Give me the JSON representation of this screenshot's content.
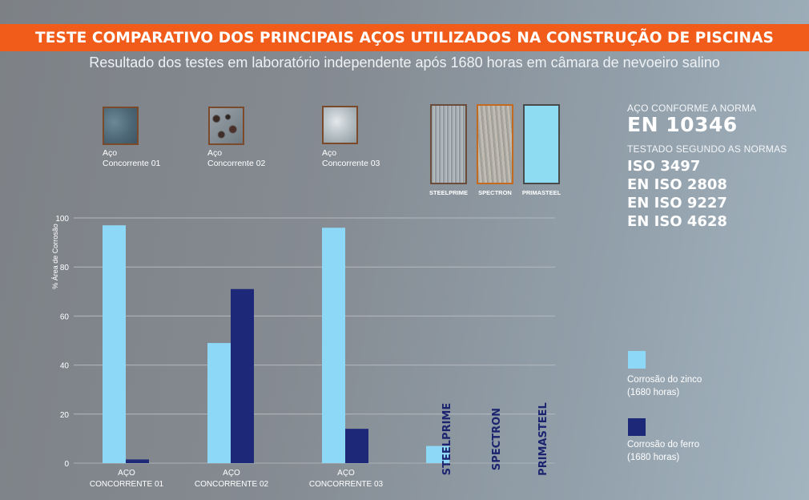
{
  "header": {
    "title": "TESTE COMPARATIVO DOS PRINCIPAIS AÇOS UTILIZADOS NA CONSTRUÇÃO DE PISCINAS",
    "subtitle": "Resultado dos testes em laboratório independente após 1680 horas em câmara de nevoeiro salino"
  },
  "samples": {
    "c1": {
      "line1": "Aço",
      "line2": "Concorrente 01"
    },
    "c2": {
      "line1": "Aço",
      "line2": "Concorrente 02"
    },
    "c3": {
      "line1": "Aço",
      "line2": "Concorrente 03"
    },
    "steelprime": "STEELPRIME",
    "spectron": "SPECTRON",
    "primasteel": "PRIMASTEEL"
  },
  "norms": {
    "conform_label": "AÇO CONFORME A NORMA",
    "conform_value": "EN 10346",
    "tested_label": "TESTADO SEGUNDO AS NORMAS",
    "tested_values": [
      "ISO 3497",
      "EN ISO 2808",
      "EN ISO 9227",
      "EN ISO 4628"
    ]
  },
  "colors": {
    "banner": "#f25c1a",
    "zinc": "#8ed8f7",
    "iron": "#1e2878",
    "rotated_label": "#1c2470"
  },
  "chart_data": {
    "type": "bar",
    "ylabel": "% Área de Corrosão",
    "xlabel": "",
    "ylim": [
      0,
      100
    ],
    "yticks": [
      0,
      20,
      40,
      60,
      80,
      100
    ],
    "grid": true,
    "legend_placement": "right",
    "categories": [
      {
        "line1": "AÇO",
        "line2": "CONCORRENTE 01"
      },
      {
        "line1": "AÇO",
        "line2": "CONCORRENTE 02"
      },
      {
        "line1": "AÇO",
        "line2": "CONCORRENTE 03"
      },
      {
        "rotated": "STEELPRIME"
      },
      {
        "rotated": "SPECTRON"
      },
      {
        "rotated": "PRIMASTEEL"
      }
    ],
    "series": [
      {
        "name": "Corrosão do zinco",
        "name_line2": "(1680 horas)",
        "values": [
          97,
          49,
          96,
          7,
          0,
          0
        ]
      },
      {
        "name": "Corrosão do ferro",
        "name_line2": "(1680 horas)",
        "values": [
          1.5,
          71,
          14,
          0,
          0,
          0
        ]
      }
    ]
  }
}
